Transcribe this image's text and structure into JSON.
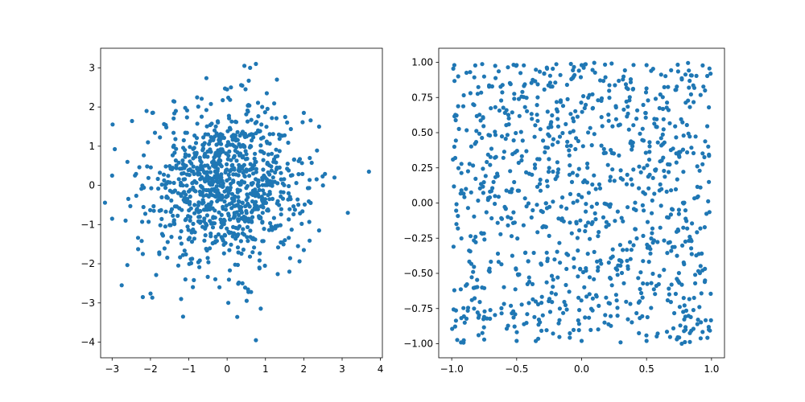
{
  "chart_data": [
    {
      "type": "scatter",
      "title": "",
      "xlabel": "",
      "ylabel": "",
      "xlim": [
        -3.3,
        4.05
      ],
      "ylim": [
        -4.4,
        3.5
      ],
      "xticks": [
        -3,
        -2,
        -1,
        0,
        1,
        2,
        3,
        4
      ],
      "yticks": [
        -4,
        -3,
        -2,
        -1,
        0,
        1,
        2,
        3
      ],
      "xtick_labels": [
        "−3",
        "−2",
        "−1",
        "0",
        "1",
        "2",
        "3",
        "4"
      ],
      "ytick_labels": [
        "−4",
        "−3",
        "−2",
        "−1",
        "0",
        "1",
        "2",
        "3"
      ],
      "grid": false,
      "marker_color": "#1f77b4",
      "distribution": "standard normal",
      "n_points": 1000,
      "series": [
        {
          "points": [
            [
              -3.0,
              0.25
            ],
            [
              -3.0,
              -0.85
            ],
            [
              -2.75,
              -2.55
            ],
            [
              -2.65,
              -0.9
            ],
            [
              -2.6,
              0.6
            ],
            [
              -2.2,
              -2.85
            ],
            [
              -2.2,
              -1.75
            ],
            [
              -1.2,
              -2.9
            ],
            [
              -1.15,
              -3.35
            ],
            [
              -0.2,
              -2.6
            ],
            [
              0.4,
              -2.5
            ],
            [
              0.75,
              -3.95
            ],
            [
              0.6,
              3.0
            ],
            [
              0.75,
              3.1
            ],
            [
              0.45,
              3.05
            ],
            [
              1.3,
              2.7
            ],
            [
              3.7,
              0.35
            ],
            [
              3.15,
              -0.7
            ],
            [
              2.8,
              0.2
            ],
            [
              2.5,
              0.0
            ],
            [
              2.4,
              1.5
            ],
            [
              2.0,
              1.85
            ],
            [
              -2.1,
              1.9
            ],
            [
              -1.95,
              1.85
            ],
            [
              -1.4,
              2.15
            ],
            [
              2.4,
              -1.15
            ],
            [
              2.0,
              -1.65
            ],
            [
              1.85,
              -1.55
            ],
            [
              0.0,
              2.45
            ],
            [
              0.1,
              2.5
            ]
          ]
        }
      ]
    },
    {
      "type": "scatter",
      "title": "",
      "xlabel": "",
      "ylabel": "",
      "xlim": [
        -1.1,
        1.1
      ],
      "ylim": [
        -1.1,
        1.1
      ],
      "xticks": [
        -1.0,
        -0.5,
        0.0,
        0.5,
        1.0
      ],
      "yticks": [
        -1.0,
        -0.75,
        -0.5,
        -0.25,
        0.0,
        0.25,
        0.5,
        0.75,
        1.0
      ],
      "xtick_labels": [
        "−1.0",
        "−0.5",
        "0.0",
        "0.5",
        "1.0"
      ],
      "ytick_labels": [
        "−1.00",
        "−0.75",
        "−0.50",
        "−0.25",
        "0.00",
        "0.25",
        "0.50",
        "0.75",
        "1.00"
      ],
      "grid": false,
      "marker_color": "#1f77b4",
      "distribution": "uniform [-1, 1]",
      "n_points": 1000,
      "series": [
        {
          "points": [
            [
              -0.98,
              0.98
            ],
            [
              -0.95,
              0.9
            ],
            [
              -0.5,
              0.98
            ],
            [
              0.0,
              0.98
            ],
            [
              0.5,
              0.98
            ],
            [
              0.95,
              0.8
            ],
            [
              0.98,
              0.68
            ],
            [
              -0.98,
              -0.62
            ],
            [
              -0.9,
              -0.85
            ],
            [
              -0.5,
              -0.98
            ],
            [
              0.0,
              -0.98
            ],
            [
              0.5,
              -0.98
            ],
            [
              0.98,
              -0.9
            ],
            [
              0.95,
              -0.55
            ],
            [
              -0.75,
              -0.97
            ],
            [
              0.3,
              -0.99
            ],
            [
              -0.98,
              0.4
            ],
            [
              0.98,
              0.15
            ],
            [
              -0.25,
              0.25
            ],
            [
              0.4,
              -0.3
            ]
          ]
        }
      ]
    }
  ]
}
